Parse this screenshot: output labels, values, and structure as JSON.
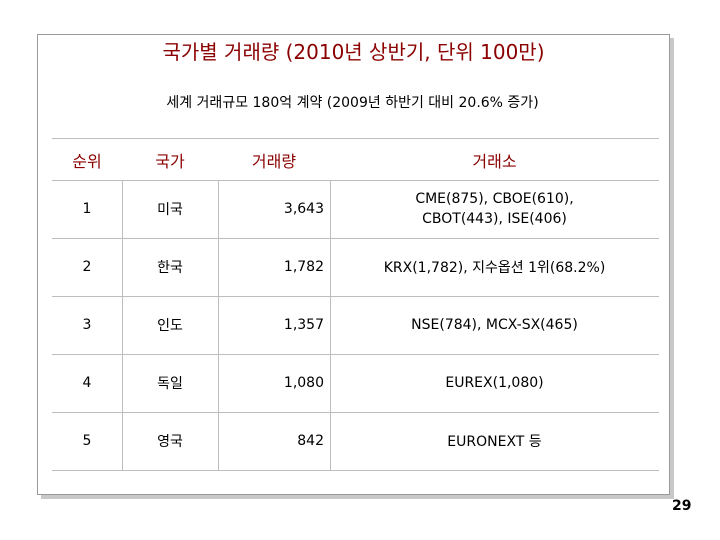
{
  "title": "국가별 거래량 (2010년 상반기, 단위 100만)",
  "subtitle": "세계 거래규모 180억 계약 (2009년 하반기 대비 20.6% 증가)",
  "headers": [
    "순위",
    "국가",
    "거래량",
    "거래소"
  ],
  "rows": [
    {
      "rank": "1",
      "country": "미국",
      "volume": "3,643",
      "exchange_line1": "CME(875), CBOE(610),",
      "exchange_line2": "CBOT(443), ISE(406)"
    },
    {
      "rank": "2",
      "country": "한국",
      "volume": "1,782",
      "exchange_line1": "KRX(1,782), 지수옵션 1위(68.2%)",
      "exchange_line2": ""
    },
    {
      "rank": "3",
      "country": "인도",
      "volume": "1,357",
      "exchange_line1": "NSE(784), MCX-SX(465)",
      "exchange_line2": ""
    },
    {
      "rank": "4",
      "country": "독일",
      "volume": "1,080",
      "exchange_line1": "EUREX(1,080)",
      "exchange_line2": ""
    },
    {
      "rank": "5",
      "country": "영국",
      "volume": "842",
      "exchange_line1": "EURONEXT 등",
      "exchange_line2": ""
    }
  ],
  "page_number": "29"
}
